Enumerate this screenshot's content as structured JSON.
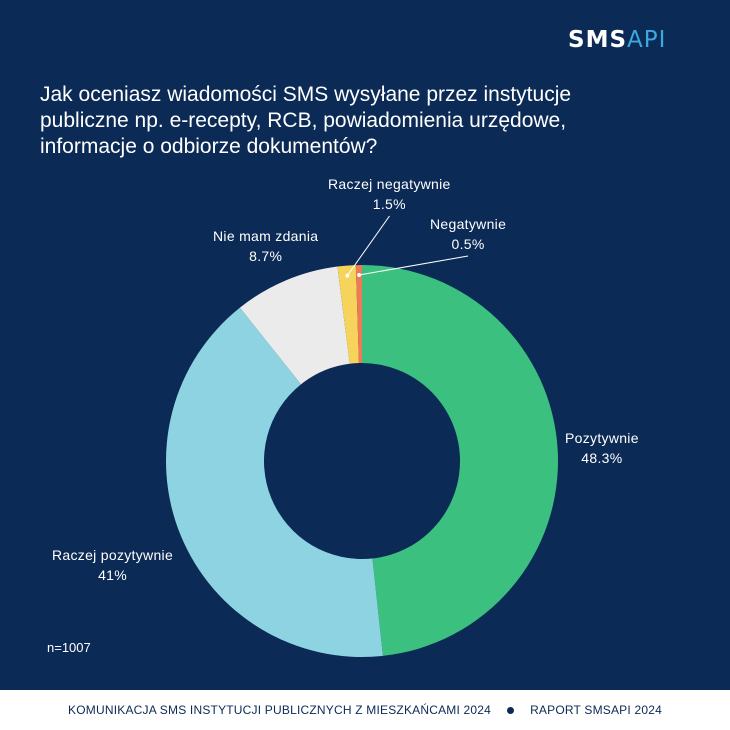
{
  "brand": {
    "logo_part1": "SMS",
    "logo_part2": "API"
  },
  "title": "Jak oceniasz wiadomości SMS wysyłane przez instytucje publiczne np. e-recepty, RCB, powiadomienia urzędowe, informacje o odbiorze dokumentów?",
  "sample": "n=1007",
  "footer": {
    "left": "KOMUNIKACJA SMS INSTYTUCJI PUBLICZNYCH Z MIESZKAŃCAMI 2024",
    "right": "RAPORT SMSAPI 2024"
  },
  "chart_data": {
    "type": "pie",
    "style": "donut",
    "start": "top, clockwise",
    "slices": [
      {
        "label": "Pozytywnie",
        "value": 48.3,
        "value_label": "48.3%",
        "color": "#3cc07f"
      },
      {
        "label": "Raczej pozytywnie",
        "value": 41,
        "value_label": "41%",
        "color": "#8ed3e2"
      },
      {
        "label": "Nie mam zdania",
        "value": 8.7,
        "value_label": "8.7%",
        "color": "#ebebeb"
      },
      {
        "label": "Raczej negatywnie",
        "value": 1.5,
        "value_label": "1.5%",
        "color": "#f6d45c"
      },
      {
        "label": "Negatywnie",
        "value": 0.5,
        "value_label": "0.5%",
        "color": "#ee7a55"
      }
    ]
  },
  "colors": {
    "background": "#0b2a55",
    "footer_bg": "#ffffff"
  }
}
